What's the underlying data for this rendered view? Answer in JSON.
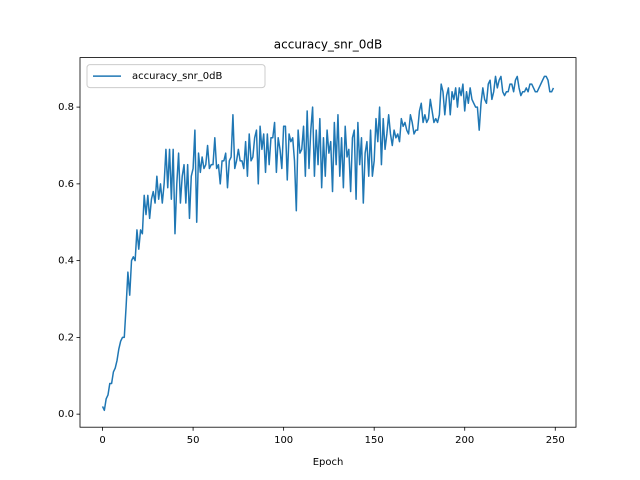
{
  "chart_data": {
    "type": "line",
    "title": "accuracy_snr_0dB",
    "x_label": "Epoch",
    "x": [
      0,
      1,
      2,
      3,
      4,
      5,
      6,
      7,
      8,
      9,
      10,
      11,
      12,
      13,
      14,
      15,
      16,
      17,
      18,
      19,
      20,
      21,
      22,
      23,
      24,
      25,
      26,
      27,
      28,
      29,
      30,
      31,
      32,
      33,
      34,
      35,
      36,
      37,
      38,
      39,
      40,
      41,
      42,
      43,
      44,
      45,
      46,
      47,
      48,
      49,
      50,
      51,
      52,
      53,
      54,
      55,
      56,
      57,
      58,
      59,
      60,
      61,
      62,
      63,
      64,
      65,
      66,
      67,
      68,
      69,
      70,
      71,
      72,
      73,
      74,
      75,
      76,
      77,
      78,
      79,
      80,
      81,
      82,
      83,
      84,
      85,
      86,
      87,
      88,
      89,
      90,
      91,
      92,
      93,
      94,
      95,
      96,
      97,
      98,
      99,
      100,
      101,
      102,
      103,
      104,
      105,
      106,
      107,
      108,
      109,
      110,
      111,
      112,
      113,
      114,
      115,
      116,
      117,
      118,
      119,
      120,
      121,
      122,
      123,
      124,
      125,
      126,
      127,
      128,
      129,
      130,
      131,
      132,
      133,
      134,
      135,
      136,
      137,
      138,
      139,
      140,
      141,
      142,
      143,
      144,
      145,
      146,
      147,
      148,
      149,
      150,
      151,
      152,
      153,
      154,
      155,
      156,
      157,
      158,
      159,
      160,
      161,
      162,
      163,
      164,
      165,
      166,
      167,
      168,
      169,
      170,
      171,
      172,
      173,
      174,
      175,
      176,
      177,
      178,
      179,
      180,
      181,
      182,
      183,
      184,
      185,
      186,
      187,
      188,
      189,
      190,
      191,
      192,
      193,
      194,
      195,
      196,
      197,
      198,
      199,
      200,
      201,
      202,
      203,
      204,
      205,
      206,
      207,
      208,
      209,
      210,
      211,
      212,
      213,
      214,
      215,
      216,
      217,
      218,
      219,
      220,
      221,
      222,
      223,
      224,
      225,
      226,
      227,
      228,
      229,
      230,
      231,
      232,
      233,
      234,
      235,
      236,
      237,
      238,
      239,
      240,
      241,
      242,
      243,
      244,
      245,
      246,
      247,
      248,
      249
    ],
    "series": [
      {
        "name": "accuracy_snr_0dB",
        "color": "#1f77b4",
        "values": [
          0.02,
          0.01,
          0.04,
          0.05,
          0.08,
          0.08,
          0.11,
          0.12,
          0.14,
          0.17,
          0.19,
          0.2,
          0.2,
          0.28,
          0.37,
          0.31,
          0.4,
          0.41,
          0.4,
          0.48,
          0.43,
          0.48,
          0.47,
          0.57,
          0.52,
          0.57,
          0.51,
          0.56,
          0.58,
          0.55,
          0.62,
          0.56,
          0.6,
          0.55,
          0.6,
          0.69,
          0.59,
          0.69,
          0.56,
          0.69,
          0.47,
          0.6,
          0.68,
          0.55,
          0.62,
          0.65,
          0.55,
          0.65,
          0.51,
          0.62,
          0.64,
          0.74,
          0.5,
          0.68,
          0.63,
          0.67,
          0.64,
          0.65,
          0.7,
          0.64,
          0.65,
          0.65,
          0.72,
          0.64,
          0.65,
          0.6,
          0.66,
          0.66,
          0.68,
          0.59,
          0.66,
          0.67,
          0.78,
          0.64,
          0.66,
          0.69,
          0.66,
          0.66,
          0.64,
          0.71,
          0.62,
          0.73,
          0.66,
          0.67,
          0.72,
          0.74,
          0.6,
          0.75,
          0.69,
          0.73,
          0.63,
          0.73,
          0.65,
          0.72,
          0.72,
          0.76,
          0.63,
          0.72,
          0.69,
          0.64,
          0.75,
          0.75,
          0.61,
          0.73,
          0.71,
          0.72,
          0.66,
          0.53,
          0.74,
          0.68,
          0.69,
          0.75,
          0.62,
          0.79,
          0.64,
          0.74,
          0.8,
          0.62,
          0.74,
          0.65,
          0.77,
          0.59,
          0.72,
          0.62,
          0.74,
          0.68,
          0.71,
          0.58,
          0.76,
          0.65,
          0.78,
          0.62,
          0.72,
          0.59,
          0.75,
          0.67,
          0.69,
          0.58,
          0.72,
          0.74,
          0.56,
          0.76,
          0.65,
          0.72,
          0.55,
          0.68,
          0.71,
          0.62,
          0.74,
          0.62,
          0.66,
          0.77,
          0.71,
          0.8,
          0.65,
          0.77,
          0.69,
          0.73,
          0.78,
          0.73,
          0.7,
          0.74,
          0.72,
          0.73,
          0.71,
          0.77,
          0.75,
          0.76,
          0.74,
          0.73,
          0.78,
          0.76,
          0.73,
          0.74,
          0.74,
          0.79,
          0.81,
          0.76,
          0.78,
          0.76,
          0.77,
          0.82,
          0.79,
          0.76,
          0.77,
          0.76,
          0.78,
          0.86,
          0.84,
          0.78,
          0.83,
          0.85,
          0.78,
          0.84,
          0.82,
          0.85,
          0.8,
          0.85,
          0.83,
          0.86,
          0.79,
          0.84,
          0.81,
          0.85,
          0.82,
          0.81,
          0.8,
          0.8,
          0.74,
          0.81,
          0.85,
          0.82,
          0.81,
          0.86,
          0.87,
          0.82,
          0.84,
          0.88,
          0.85,
          0.87,
          0.88,
          0.84,
          0.83,
          0.84,
          0.84,
          0.86,
          0.86,
          0.84,
          0.87,
          0.88,
          0.85,
          0.83,
          0.84,
          0.84,
          0.85,
          0.84,
          0.86,
          0.86,
          0.85,
          0.84,
          0.84,
          0.85,
          0.86,
          0.87,
          0.88,
          0.88,
          0.87,
          0.84,
          0.84,
          0.85
        ]
      }
    ],
    "xlim": [
      -12.45,
      261.45
    ],
    "xticks": [
      0,
      50,
      100,
      150,
      200,
      250
    ],
    "ylim": [
      -0.034,
      0.929
    ],
    "yticks": [
      {
        "value": 0,
        "label": "0.0"
      },
      0.2,
      0.4,
      0.6,
      0.8
    ],
    "legend": "upper left",
    "grid": false
  }
}
